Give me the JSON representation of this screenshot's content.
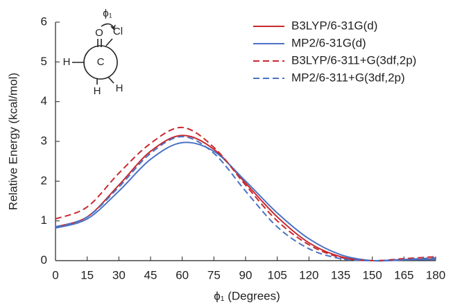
{
  "chart_data": {
    "type": "line",
    "x_label": "ϕ₁ (Degrees)",
    "y_label": "Relative Energy (kcal/mol)",
    "x": [
      0,
      15,
      30,
      45,
      60,
      75,
      90,
      105,
      120,
      135,
      150,
      165,
      180
    ],
    "series": [
      {
        "name": "B3LYP/6-31G(d)",
        "color": "#c8282d",
        "dash": false,
        "values": [
          0.85,
          1.1,
          1.9,
          2.75,
          3.15,
          2.8,
          1.95,
          1.1,
          0.45,
          0.1,
          0.0,
          0.02,
          0.05
        ]
      },
      {
        "name": "MP2/6-31G(d)",
        "color": "#4a72c4",
        "dash": false,
        "values": [
          0.82,
          1.05,
          1.75,
          2.55,
          2.97,
          2.75,
          2.0,
          1.2,
          0.55,
          0.15,
          0.0,
          0.02,
          0.03
        ]
      },
      {
        "name": "B3LYP/6-311+G(3df,2p)",
        "color": "#c8282d",
        "dash": true,
        "values": [
          1.05,
          1.35,
          2.2,
          2.95,
          3.35,
          2.85,
          1.9,
          1.0,
          0.4,
          0.08,
          0.0,
          0.05,
          0.1
        ]
      },
      {
        "name": "MP2/6-311+G(3df,2p)",
        "color": "#4a72c4",
        "dash": true,
        "values": [
          0.85,
          1.1,
          1.85,
          2.7,
          3.12,
          2.7,
          1.75,
          0.85,
          0.3,
          0.05,
          0.0,
          0.03,
          0.07
        ]
      }
    ],
    "xlim": [
      0,
      180
    ],
    "xticks": [
      0,
      15,
      30,
      45,
      60,
      75,
      90,
      105,
      120,
      135,
      150,
      165,
      180
    ],
    "ylim": [
      0,
      6
    ],
    "yticks": [
      0,
      1,
      2,
      3,
      4,
      5,
      6
    ],
    "grid": false,
    "legend": "upper right",
    "inset": {
      "labels": [
        "ϕ₁",
        "O",
        "Cl",
        "H",
        "C",
        "H",
        "H"
      ]
    }
  }
}
